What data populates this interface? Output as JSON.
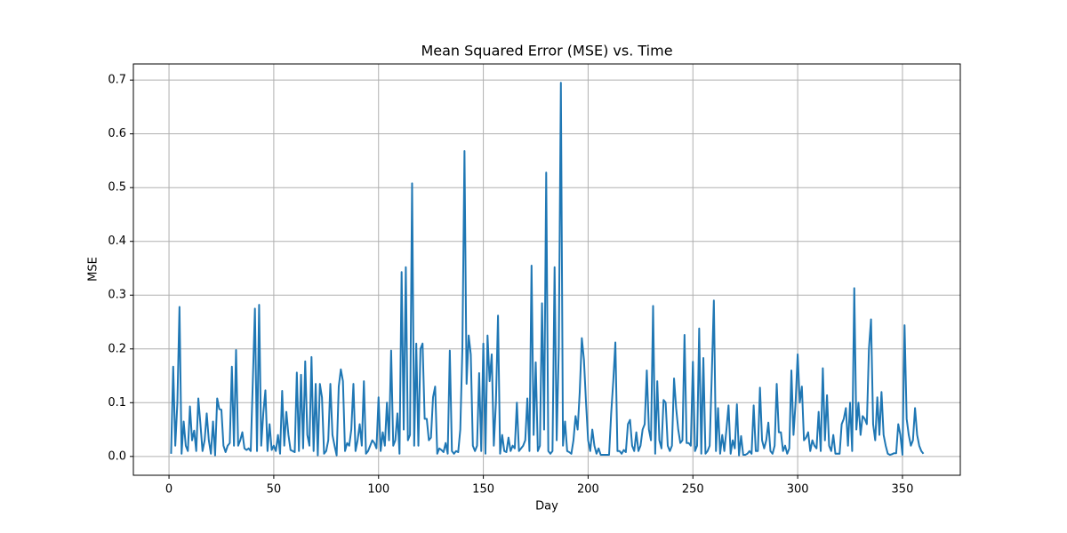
{
  "chart_data": {
    "type": "line",
    "title": "Mean Squared Error (MSE) vs. Time",
    "x_label": "Day",
    "y_label": "MSE",
    "color": "#1f77b4",
    "grid": true,
    "xlim": [
      -17,
      377.6
    ],
    "ylim": [
      -0.035,
      0.73
    ],
    "xticks": [
      0,
      50,
      100,
      150,
      200,
      250,
      300,
      350
    ],
    "yticks": [
      {
        "value": 0,
        "label": "0.0"
      },
      0.1,
      0.2,
      0.3,
      0.4,
      0.5,
      0.6,
      0.7
    ],
    "x": [
      1,
      2,
      3,
      4,
      5,
      6,
      7,
      8,
      9,
      10,
      11,
      12,
      13,
      14,
      15,
      16,
      17,
      18,
      19,
      20,
      21,
      22,
      23,
      24,
      25,
      26,
      27,
      28,
      29,
      30,
      31,
      32,
      33,
      34,
      35,
      36,
      37,
      38,
      39,
      40,
      41,
      42,
      43,
      44,
      45,
      46,
      47,
      48,
      49,
      50,
      51,
      52,
      53,
      54,
      55,
      56,
      57,
      58,
      59,
      60,
      61,
      62,
      63,
      64,
      65,
      66,
      67,
      68,
      69,
      70,
      71,
      72,
      73,
      74,
      75,
      76,
      77,
      78,
      79,
      80,
      81,
      82,
      83,
      84,
      85,
      86,
      87,
      88,
      89,
      90,
      91,
      92,
      93,
      94,
      95,
      96,
      97,
      98,
      99,
      100,
      101,
      102,
      103,
      104,
      105,
      106,
      107,
      108,
      109,
      110,
      111,
      112,
      113,
      114,
      115,
      116,
      117,
      118,
      119,
      120,
      121,
      122,
      123,
      124,
      125,
      126,
      127,
      128,
      129,
      130,
      131,
      132,
      133,
      134,
      135,
      136,
      137,
      138,
      139,
      140,
      141,
      142,
      143,
      144,
      145,
      146,
      147,
      148,
      149,
      150,
      151,
      152,
      153,
      154,
      155,
      156,
      157,
      158,
      159,
      160,
      161,
      162,
      163,
      164,
      165,
      166,
      167,
      168,
      169,
      170,
      171,
      172,
      173,
      174,
      175,
      176,
      177,
      178,
      179,
      180,
      181,
      182,
      183,
      184,
      185,
      186,
      187,
      188,
      189,
      190,
      191,
      192,
      193,
      194,
      195,
      196,
      197,
      198,
      199,
      200,
      201,
      202,
      203,
      204,
      205,
      206,
      207,
      208,
      209,
      210,
      211,
      212,
      213,
      214,
      215,
      216,
      217,
      218,
      219,
      220,
      221,
      222,
      223,
      224,
      225,
      226,
      227,
      228,
      229,
      230,
      231,
      232,
      233,
      234,
      235,
      236,
      237,
      238,
      239,
      240,
      241,
      242,
      243,
      244,
      245,
      246,
      247,
      248,
      249,
      250,
      251,
      252,
      253,
      254,
      255,
      256,
      257,
      258,
      259,
      260,
      261,
      262,
      263,
      264,
      265,
      266,
      267,
      268,
      269,
      270,
      271,
      272,
      273,
      274,
      275,
      276,
      277,
      278,
      279,
      280,
      281,
      282,
      283,
      284,
      285,
      286,
      287,
      288,
      289,
      290,
      291,
      292,
      293,
      294,
      295,
      296,
      297,
      298,
      299,
      300,
      301,
      302,
      303,
      304,
      305,
      306,
      307,
      308,
      309,
      310,
      311,
      312,
      313,
      314,
      315,
      316,
      317,
      318,
      319,
      320,
      321,
      322,
      323,
      324,
      325,
      326,
      327,
      328,
      329,
      330,
      331,
      332,
      333,
      334,
      335,
      336,
      337,
      338,
      339,
      340,
      341,
      342,
      343,
      344,
      345,
      346,
      347,
      348,
      349,
      350,
      351,
      352,
      353,
      354,
      355,
      356,
      357,
      358,
      359,
      360
    ],
    "values": [
      0.005,
      0.167,
      0.02,
      0.1,
      0.278,
      0.005,
      0.065,
      0.02,
      0.01,
      0.093,
      0.03,
      0.048,
      0.01,
      0.108,
      0.06,
      0.01,
      0.03,
      0.08,
      0.03,
      0.005,
      0.065,
      0.002,
      0.108,
      0.088,
      0.087,
      0.02,
      0.008,
      0.02,
      0.025,
      0.167,
      0.02,
      0.198,
      0.02,
      0.03,
      0.045,
      0.015,
      0.012,
      0.015,
      0.01,
      0.14,
      0.275,
      0.01,
      0.282,
      0.02,
      0.08,
      0.123,
      0.01,
      0.06,
      0.012,
      0.02,
      0.01,
      0.04,
      0.005,
      0.122,
      0.02,
      0.083,
      0.04,
      0.012,
      0.01,
      0.008,
      0.156,
      0.01,
      0.152,
      0.015,
      0.177,
      0.04,
      0.02,
      0.185,
      0.01,
      0.135,
      0.002,
      0.135,
      0.11,
      0.005,
      0.01,
      0.03,
      0.135,
      0.04,
      0.02,
      0.002,
      0.13,
      0.162,
      0.14,
      0.01,
      0.025,
      0.02,
      0.05,
      0.135,
      0.01,
      0.03,
      0.06,
      0.02,
      0.14,
      0.005,
      0.01,
      0.02,
      0.03,
      0.025,
      0.015,
      0.11,
      0.01,
      0.045,
      0.02,
      0.1,
      0.03,
      0.197,
      0.02,
      0.03,
      0.08,
      0.005,
      0.343,
      0.05,
      0.352,
      0.03,
      0.04,
      0.508,
      0.02,
      0.21,
      0.02,
      0.2,
      0.21,
      0.07,
      0.07,
      0.03,
      0.035,
      0.11,
      0.13,
      0.005,
      0.015,
      0.012,
      0.008,
      0.025,
      0.005,
      0.197,
      0.01,
      0.005,
      0.01,
      0.008,
      0.05,
      0.2,
      0.568,
      0.135,
      0.225,
      0.19,
      0.02,
      0.01,
      0.02,
      0.155,
      0.01,
      0.21,
      0.005,
      0.225,
      0.14,
      0.19,
      0.02,
      0.1,
      0.262,
      0.005,
      0.04,
      0.01,
      0.008,
      0.035,
      0.01,
      0.02,
      0.015,
      0.1,
      0.01,
      0.015,
      0.02,
      0.03,
      0.108,
      0.01,
      0.355,
      0.04,
      0.175,
      0.01,
      0.02,
      0.285,
      0.05,
      0.528,
      0.01,
      0.005,
      0.01,
      0.352,
      0.03,
      0.2,
      0.695,
      0.02,
      0.065,
      0.01,
      0.008,
      0.005,
      0.03,
      0.075,
      0.05,
      0.12,
      0.22,
      0.18,
      0.1,
      0.03,
      0.01,
      0.05,
      0.02,
      0.005,
      0.015,
      0.003,
      0.003,
      0.003,
      0.003,
      0.003,
      0.08,
      0.14,
      0.212,
      0.01,
      0.01,
      0.005,
      0.012,
      0.008,
      0.06,
      0.068,
      0.02,
      0.01,
      0.045,
      0.01,
      0.02,
      0.05,
      0.06,
      0.16,
      0.05,
      0.03,
      0.28,
      0.005,
      0.14,
      0.03,
      0.015,
      0.105,
      0.1,
      0.02,
      0.01,
      0.02,
      0.145,
      0.09,
      0.05,
      0.025,
      0.03,
      0.226,
      0.025,
      0.025,
      0.02,
      0.176,
      0.01,
      0.02,
      0.238,
      0.005,
      0.183,
      0.005,
      0.01,
      0.02,
      0.15,
      0.29,
      0.01,
      0.09,
      0.005,
      0.04,
      0.01,
      0.05,
      0.095,
      0.005,
      0.03,
      0.015,
      0.097,
      0.002,
      0.038,
      0.003,
      0.003,
      0.005,
      0.01,
      0.005,
      0.095,
      0.01,
      0.01,
      0.128,
      0.03,
      0.015,
      0.03,
      0.063,
      0.01,
      0.005,
      0.02,
      0.135,
      0.045,
      0.045,
      0.01,
      0.02,
      0.005,
      0.015,
      0.16,
      0.04,
      0.1,
      0.19,
      0.1,
      0.13,
      0.03,
      0.035,
      0.045,
      0.01,
      0.03,
      0.02,
      0.015,
      0.083,
      0.01,
      0.164,
      0.03,
      0.114,
      0.02,
      0.01,
      0.04,
      0.005,
      0.005,
      0.005,
      0.06,
      0.07,
      0.09,
      0.02,
      0.1,
      0.01,
      0.313,
      0.05,
      0.1,
      0.04,
      0.075,
      0.07,
      0.06,
      0.2,
      0.255,
      0.06,
      0.03,
      0.11,
      0.04,
      0.12,
      0.04,
      0.02,
      0.005,
      0.003,
      0.004,
      0.006,
      0.006,
      0.06,
      0.04,
      0.003,
      0.244,
      0.07,
      0.04,
      0.02,
      0.03,
      0.09,
      0.04,
      0.02,
      0.01,
      0.005
    ]
  }
}
